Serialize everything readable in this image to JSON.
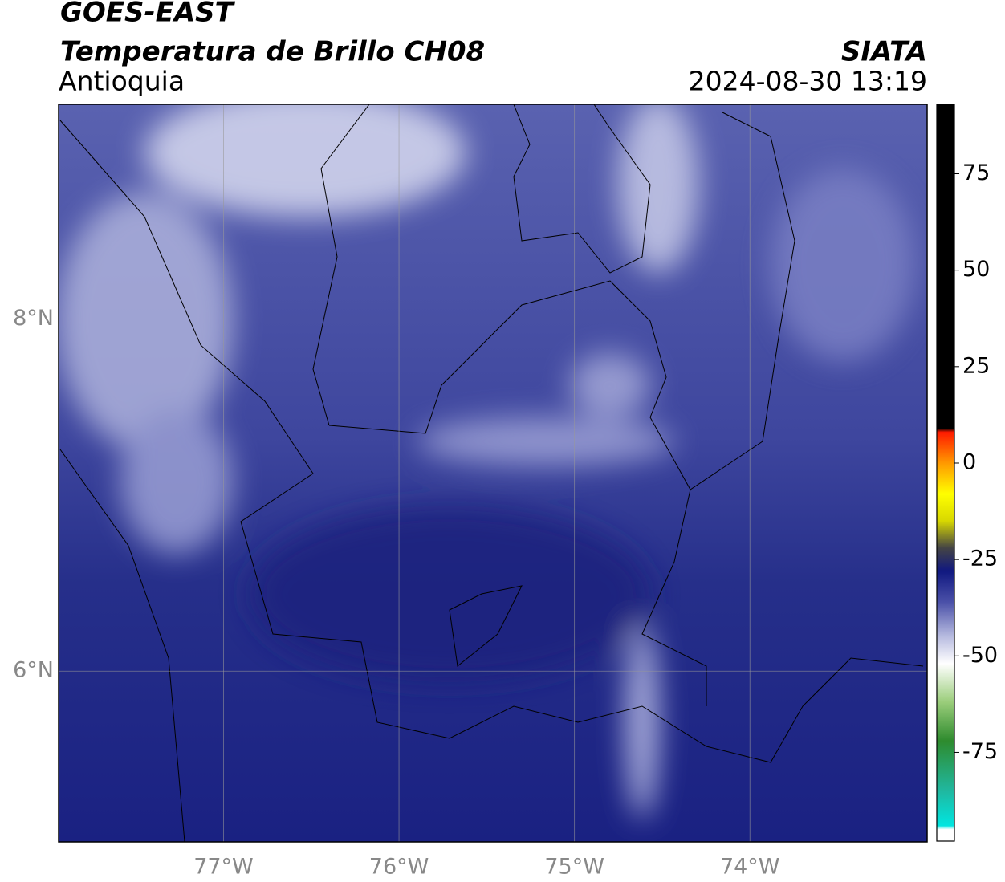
{
  "header": {
    "title": "GOES-EAST",
    "subtitle": "Temperatura de Brillo CH08",
    "region": "Antioquia",
    "source": "SIATA",
    "datetime": "2024-08-30 13:19"
  },
  "map": {
    "xlim": [
      -77.94,
      -72.99
    ],
    "ylim": [
      5.03,
      9.22
    ],
    "xticks": [
      {
        "value": -77,
        "label": "77°W"
      },
      {
        "value": -76,
        "label": "76°W"
      },
      {
        "value": -75,
        "label": "75°W"
      },
      {
        "value": -74,
        "label": "74°W"
      }
    ],
    "yticks": [
      {
        "value": 6,
        "label": "6°N"
      },
      {
        "value": 8,
        "label": "8°N"
      }
    ],
    "grid": true
  },
  "colorbar": {
    "lim": [
      -98,
      93
    ],
    "ticks": [
      -75,
      -50,
      -25,
      0,
      25,
      50,
      75
    ],
    "colors": [
      {
        "value": -98,
        "color": "#ffffff"
      },
      {
        "value": -95,
        "color": "#ffffff"
      },
      {
        "value": -94,
        "color": "#00e5e0"
      },
      {
        "value": -85,
        "color": "#20b8a0"
      },
      {
        "value": -72,
        "color": "#2e8b2e"
      },
      {
        "value": -62,
        "color": "#9acd7a"
      },
      {
        "value": -52,
        "color": "#ffffff"
      },
      {
        "value": -45,
        "color": "#b8bce0"
      },
      {
        "value": -36,
        "color": "#4a50a8"
      },
      {
        "value": -28,
        "color": "#101880"
      },
      {
        "value": -22,
        "color": "#444444"
      },
      {
        "value": -15,
        "color": "#d8d800"
      },
      {
        "value": -8,
        "color": "#ffff00"
      },
      {
        "value": 0,
        "color": "#ff9900"
      },
      {
        "value": 8,
        "color": "#ff1a00"
      },
      {
        "value": 9,
        "color": "#000000"
      },
      {
        "value": 93,
        "color": "#000000"
      }
    ]
  }
}
